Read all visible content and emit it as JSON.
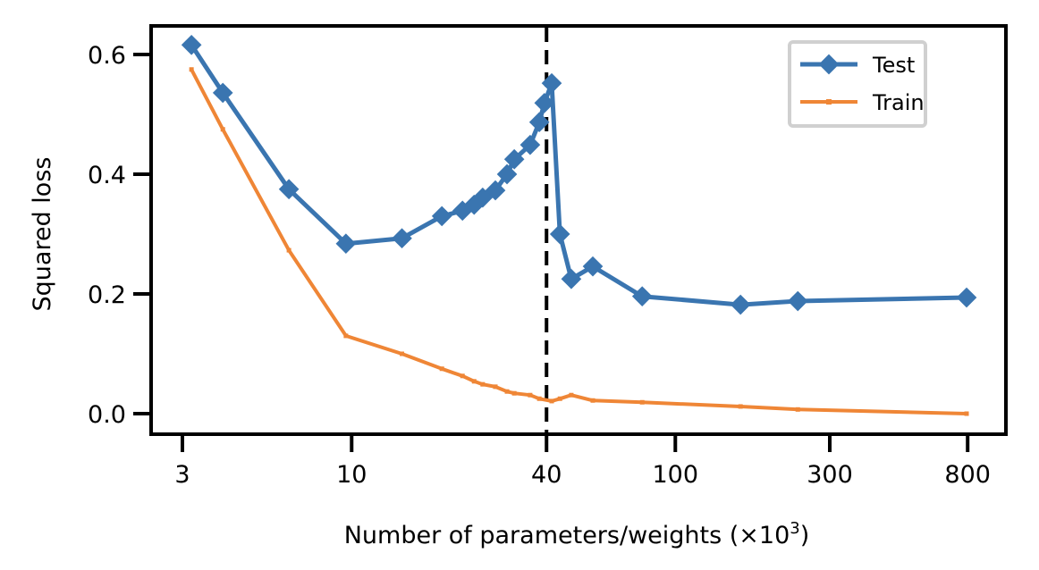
{
  "chart_data": {
    "type": "line",
    "title": "",
    "xlabel": "Number of parameters/weights (×10",
    "xlabel_sup": "3",
    "xlabel_close": ")",
    "ylabel": "Squared loss",
    "xscale": "log",
    "xlim": [
      2.7,
      1000
    ],
    "ylim": [
      -0.03,
      0.64
    ],
    "xticks": [
      3,
      10,
      40,
      100,
      300,
      800
    ],
    "xtick_labels": [
      "3",
      "10",
      "40",
      "100",
      "300",
      "800"
    ],
    "yticks": [
      0.0,
      0.2,
      0.4,
      0.6
    ],
    "ytick_labels": [
      "0.0",
      "0.2",
      "0.4",
      "0.6"
    ],
    "grid": false,
    "vline": {
      "x": 40,
      "style": "dashed",
      "color": "#000000"
    },
    "legend": {
      "placement": "top-right"
    },
    "series": [
      {
        "name": "Test",
        "color": "#3a75b0",
        "marker": "diamond",
        "x": [
          3.2,
          4.0,
          6.4,
          9.6,
          14.3,
          19,
          22,
          23.9,
          25.4,
          27.8,
          30.2,
          31.8,
          35.6,
          38,
          39.4,
          41.5,
          44,
          47.7,
          55.6,
          79,
          159,
          239,
          794
        ],
        "y": [
          0.616,
          0.536,
          0.375,
          0.284,
          0.293,
          0.33,
          0.339,
          0.349,
          0.361,
          0.373,
          0.4,
          0.425,
          0.449,
          0.487,
          0.519,
          0.552,
          0.3,
          0.225,
          0.246,
          0.196,
          0.182,
          0.188,
          0.194
        ]
      },
      {
        "name": "Train",
        "color": "#ef8636",
        "marker": "small-square",
        "x": [
          3.2,
          4.0,
          6.4,
          9.6,
          14.3,
          19,
          22,
          23.9,
          25.4,
          27.8,
          30.2,
          31.8,
          35.6,
          38,
          41.5,
          44,
          47.7,
          55.6,
          79,
          159,
          239,
          794
        ],
        "y": [
          0.575,
          0.475,
          0.273,
          0.13,
          0.1,
          0.075,
          0.063,
          0.054,
          0.049,
          0.045,
          0.037,
          0.034,
          0.031,
          0.025,
          0.021,
          0.025,
          0.031,
          0.022,
          0.019,
          0.012,
          0.007,
          0.0
        ]
      }
    ]
  }
}
